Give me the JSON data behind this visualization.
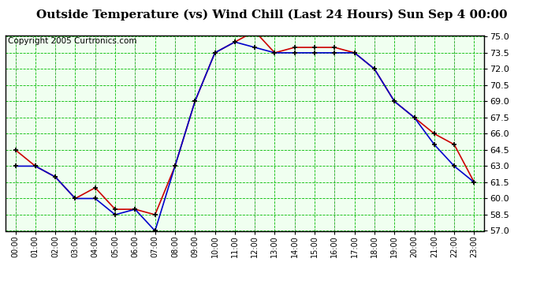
{
  "title": "Outside Temperature (vs) Wind Chill (Last 24 Hours) Sun Sep 4 00:00",
  "copyright": "Copyright 2005 Curtronics.com",
  "hours": [
    "00:00",
    "01:00",
    "02:00",
    "03:00",
    "04:00",
    "05:00",
    "06:00",
    "07:00",
    "08:00",
    "09:00",
    "10:00",
    "11:00",
    "12:00",
    "13:00",
    "14:00",
    "15:00",
    "16:00",
    "17:00",
    "18:00",
    "19:00",
    "20:00",
    "21:00",
    "22:00",
    "23:00"
  ],
  "outside_temp": [
    64.5,
    63.0,
    62.0,
    60.0,
    61.0,
    59.0,
    59.0,
    58.5,
    63.0,
    69.0,
    73.5,
    74.5,
    75.5,
    73.5,
    74.0,
    74.0,
    74.0,
    73.5,
    72.0,
    69.0,
    67.5,
    66.0,
    65.0,
    61.5
  ],
  "wind_chill": [
    63.0,
    63.0,
    62.0,
    60.0,
    60.0,
    58.5,
    59.0,
    57.0,
    63.0,
    69.0,
    73.5,
    74.5,
    74.0,
    73.5,
    73.5,
    73.5,
    73.5,
    73.5,
    72.0,
    69.0,
    67.5,
    65.0,
    63.0,
    61.5
  ],
  "ylim_min": 57.0,
  "ylim_max": 75.0,
  "ytick_start": 57.0,
  "ytick_step": 1.5,
  "bg_color": "#ffffff",
  "plot_bg_color": "#f0fff0",
  "grid_color": "#00bb00",
  "vgrid_color": "#888888",
  "red_color": "#cc0000",
  "blue_color": "#0000cc",
  "title_fontsize": 11,
  "copyright_fontsize": 7.5
}
